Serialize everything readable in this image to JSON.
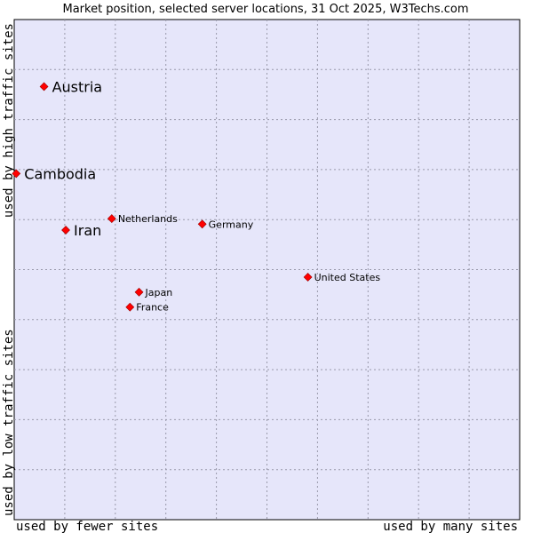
{
  "chart_data": {
    "type": "scatter",
    "title": "Market position, selected server locations, 31 Oct 2025, W3Techs.com",
    "xlabel_low": "used by fewer sites",
    "xlabel_high": "used by many sites",
    "ylabel_low": "used by low traffic sites",
    "ylabel_high": "used by high traffic sites",
    "xlim": [
      0,
      10
    ],
    "ylim": [
      0,
      10
    ],
    "grid": true,
    "colors": {
      "plot_bg": "#e6e6fa",
      "point": "#ff0000",
      "grid": "#9999aa",
      "text": "#000000"
    },
    "points": [
      {
        "label": "Austria",
        "x": 0.59,
        "y": 8.66,
        "emphasis": true
      },
      {
        "label": "Cambodia",
        "x": 0.04,
        "y": 6.92,
        "emphasis": true
      },
      {
        "label": "Iran",
        "x": 1.02,
        "y": 5.79,
        "emphasis": true
      },
      {
        "label": "Netherlands",
        "x": 1.93,
        "y": 6.02,
        "emphasis": false
      },
      {
        "label": "Germany",
        "x": 3.72,
        "y": 5.91,
        "emphasis": false
      },
      {
        "label": "United States",
        "x": 5.81,
        "y": 4.85,
        "emphasis": false
      },
      {
        "label": "Japan",
        "x": 2.47,
        "y": 4.55,
        "emphasis": false
      },
      {
        "label": "France",
        "x": 2.29,
        "y": 4.25,
        "emphasis": false
      }
    ]
  }
}
